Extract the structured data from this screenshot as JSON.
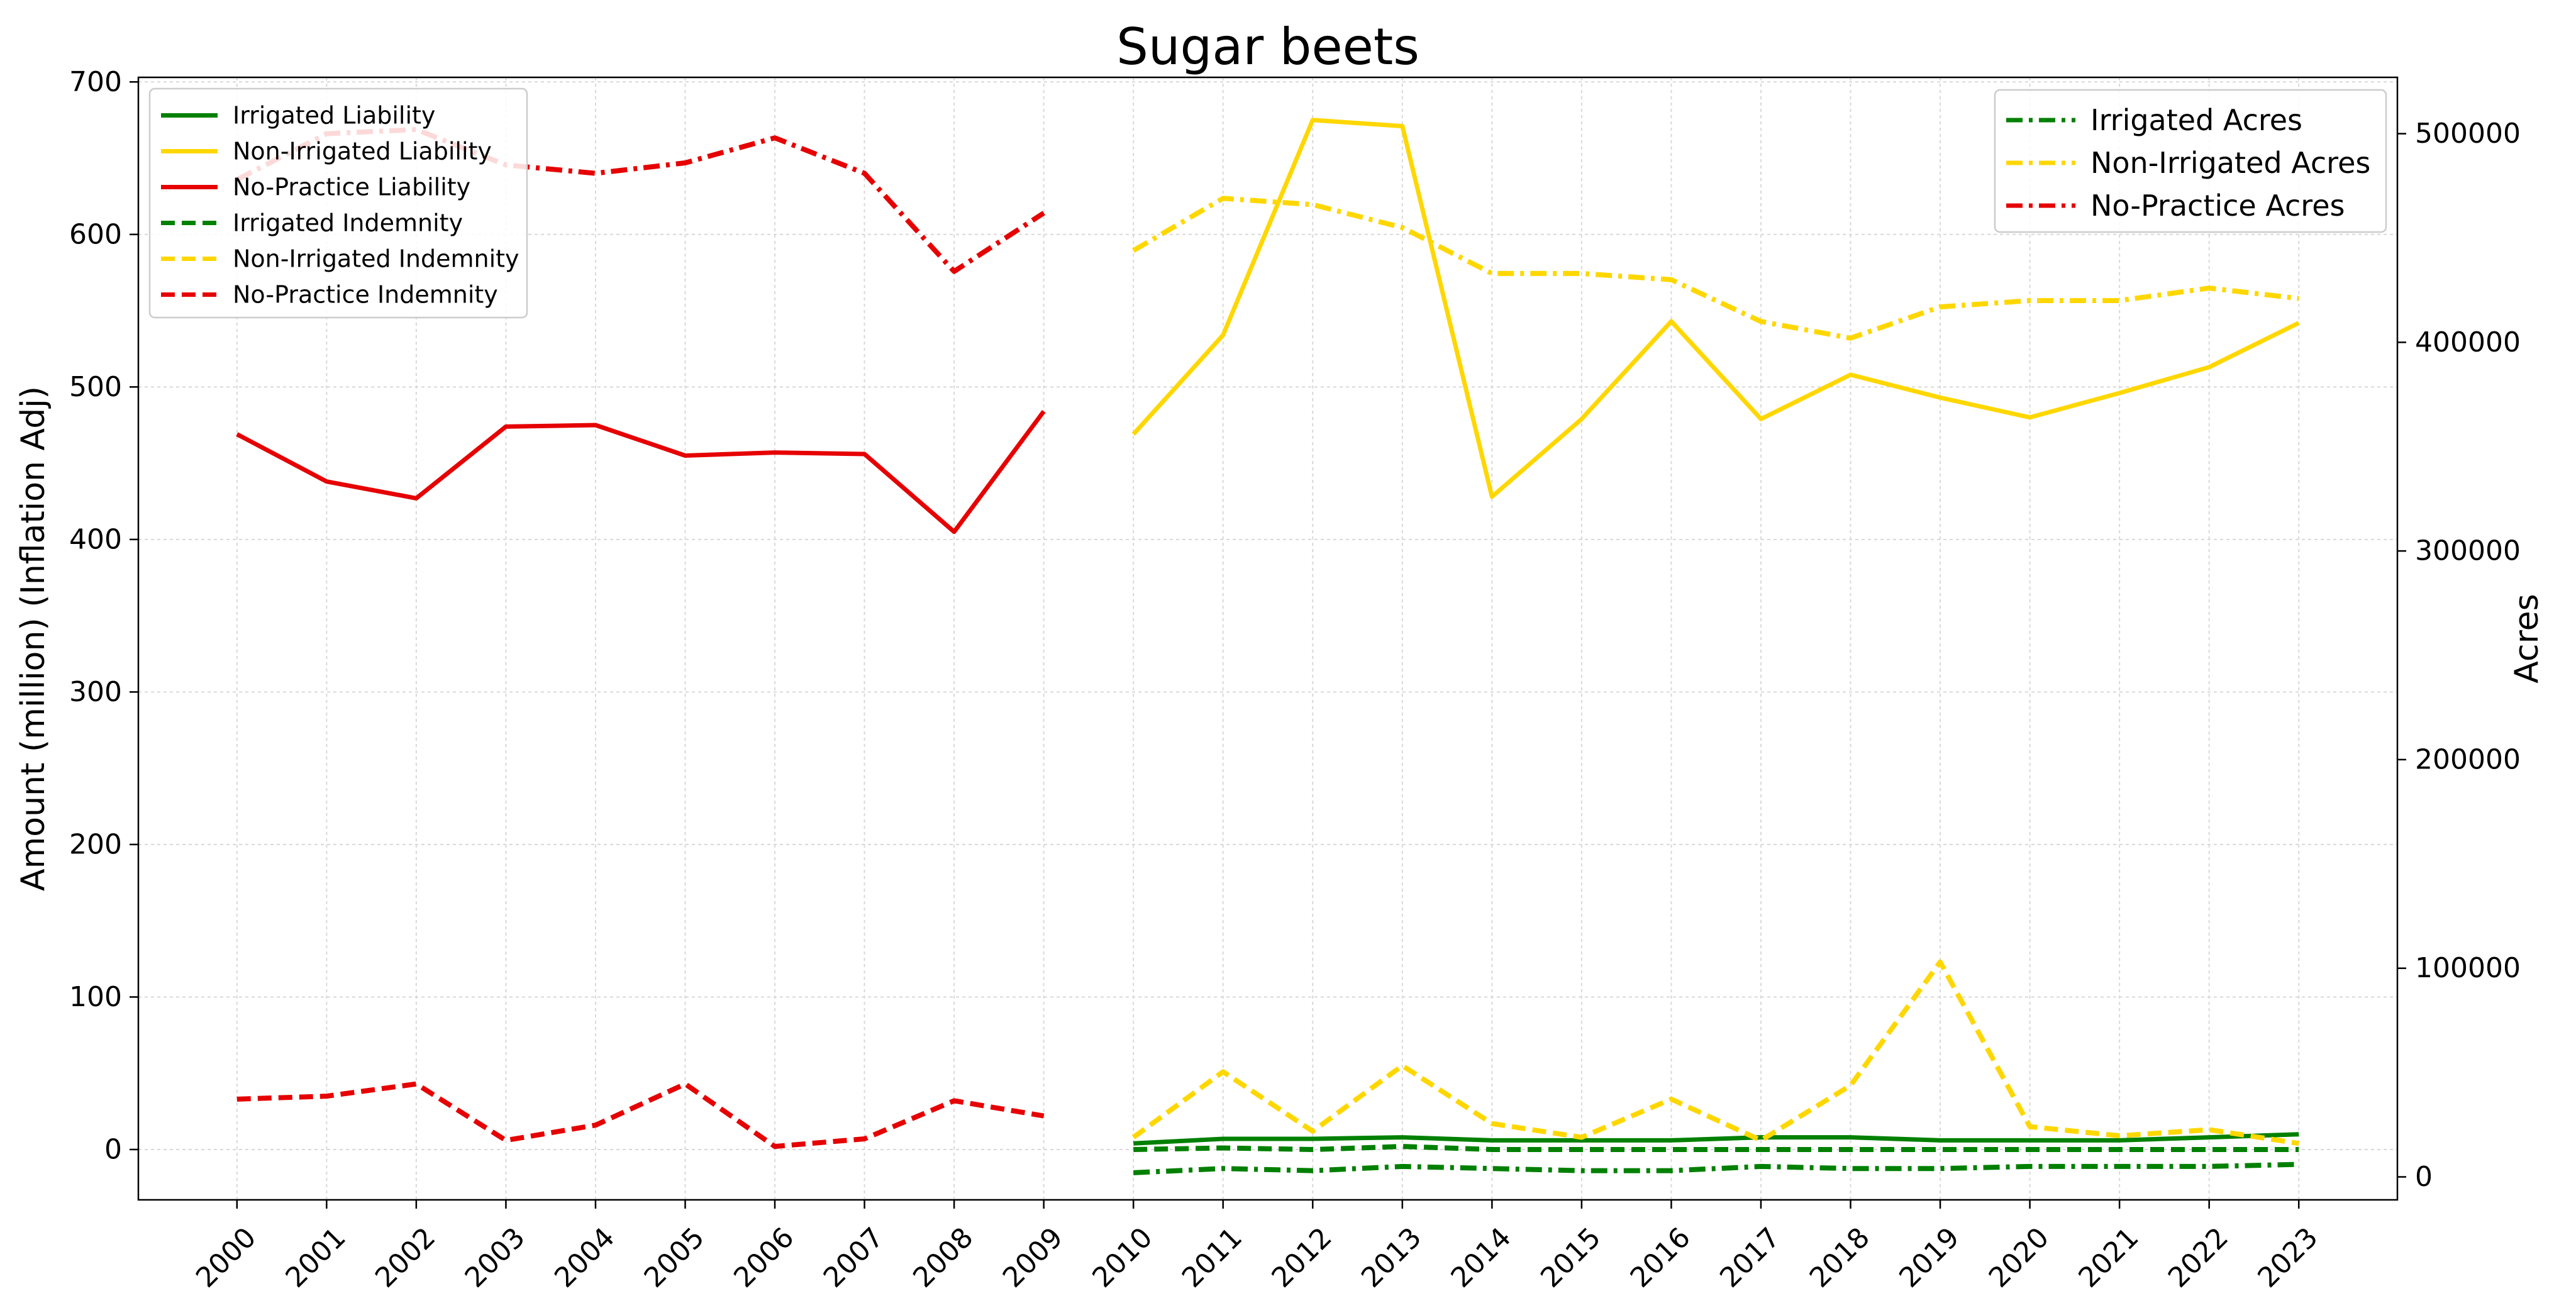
{
  "chart_data": {
    "type": "line",
    "title": "Sugar beets",
    "ylabel": "Amount (million) (Inflation Adj)",
    "y2label": "Acres",
    "xlabel": "",
    "x": [
      2000,
      2001,
      2002,
      2003,
      2004,
      2005,
      2006,
      2007,
      2008,
      2009,
      2010,
      2011,
      2012,
      2013,
      2014,
      2015,
      2016,
      2017,
      2018,
      2019,
      2020,
      2021,
      2022,
      2023
    ],
    "xlim": [
      1998.9,
      2024.1
    ],
    "ylim": [
      -33,
      703
    ],
    "y2lim": [
      -11000,
      527000
    ],
    "yticks": [
      0,
      100,
      200,
      300,
      400,
      500,
      600,
      700
    ],
    "y2ticks": [
      0,
      100000,
      200000,
      300000,
      400000,
      500000
    ],
    "grid": true,
    "colors": {
      "irrigated": "#008000",
      "non_irrigated": "#FFD700",
      "no_practice": "#E60000"
    },
    "legend_left_position": "top-left",
    "legend_right_position": "top-right",
    "series": [
      {
        "name": "Irrigated Liability",
        "axis": "left",
        "style": "solid",
        "color": "#008000",
        "values": [
          null,
          null,
          null,
          null,
          null,
          null,
          null,
          null,
          null,
          null,
          4,
          7,
          7,
          8,
          6,
          6,
          6,
          8,
          8,
          6,
          6,
          6,
          8,
          10
        ]
      },
      {
        "name": "Non-Irrigated Liability",
        "axis": "left",
        "style": "solid",
        "color": "#FFD700",
        "values": [
          null,
          null,
          null,
          null,
          null,
          null,
          null,
          null,
          null,
          null,
          469,
          534,
          675,
          671,
          428,
          479,
          543,
          479,
          508,
          493,
          480,
          496,
          513,
          542
        ]
      },
      {
        "name": "No-Practice Liability",
        "axis": "left",
        "style": "solid",
        "color": "#E60000",
        "values": [
          469,
          438,
          427,
          474,
          475,
          455,
          457,
          456,
          405,
          484,
          null,
          null,
          null,
          null,
          null,
          null,
          null,
          null,
          null,
          null,
          null,
          null,
          null,
          null
        ]
      },
      {
        "name": "Irrigated Indemnity",
        "axis": "left",
        "style": "dashed",
        "color": "#008000",
        "values": [
          null,
          null,
          null,
          null,
          null,
          null,
          null,
          null,
          null,
          null,
          0,
          1,
          0,
          2,
          0,
          0,
          0,
          0,
          0,
          0,
          0,
          0,
          0,
          0
        ]
      },
      {
        "name": "Non-Irrigated Indemnity",
        "axis": "left",
        "style": "dashed",
        "color": "#FFD700",
        "values": [
          null,
          null,
          null,
          null,
          null,
          null,
          null,
          null,
          null,
          null,
          8,
          51,
          12,
          55,
          17,
          8,
          33,
          6,
          42,
          123,
          15,
          9,
          13,
          4
        ]
      },
      {
        "name": "No-Practice Indemnity",
        "axis": "left",
        "style": "dashed",
        "color": "#E60000",
        "values": [
          33,
          35,
          43,
          6,
          16,
          43,
          2,
          7,
          32,
          22,
          null,
          null,
          null,
          null,
          null,
          null,
          null,
          null,
          null,
          null,
          null,
          null,
          null,
          null
        ]
      },
      {
        "name": "Irrigated Acres",
        "axis": "right",
        "style": "dashdot",
        "color": "#008000",
        "values": [
          null,
          null,
          null,
          null,
          null,
          null,
          null,
          null,
          null,
          null,
          2000,
          4000,
          3000,
          5000,
          4000,
          3000,
          3000,
          5000,
          4000,
          4000,
          5000,
          5000,
          5000,
          6000
        ]
      },
      {
        "name": "Non-Irrigated Acres",
        "axis": "right",
        "style": "dashdot",
        "color": "#FFD700",
        "values": [
          null,
          null,
          null,
          null,
          null,
          null,
          null,
          null,
          null,
          null,
          444000,
          469000,
          466000,
          455000,
          433000,
          433000,
          430000,
          410000,
          402000,
          417000,
          420000,
          420000,
          426000,
          421000
        ]
      },
      {
        "name": "No-Practice Acres",
        "axis": "right",
        "style": "dashdot",
        "color": "#E60000",
        "values": [
          478000,
          500000,
          502000,
          485000,
          481000,
          486000,
          498000,
          481000,
          434000,
          462000,
          null,
          null,
          null,
          null,
          null,
          null,
          null,
          null,
          null,
          null,
          null,
          null,
          null,
          null
        ]
      }
    ],
    "legend_left": [
      "Irrigated Liability",
      "Non-Irrigated Liability",
      "No-Practice Liability",
      "Irrigated Indemnity",
      "Non-Irrigated Indemnity",
      "No-Practice Indemnity"
    ],
    "legend_right": [
      "Irrigated Acres",
      "Non-Irrigated Acres",
      "No-Practice Acres"
    ]
  }
}
